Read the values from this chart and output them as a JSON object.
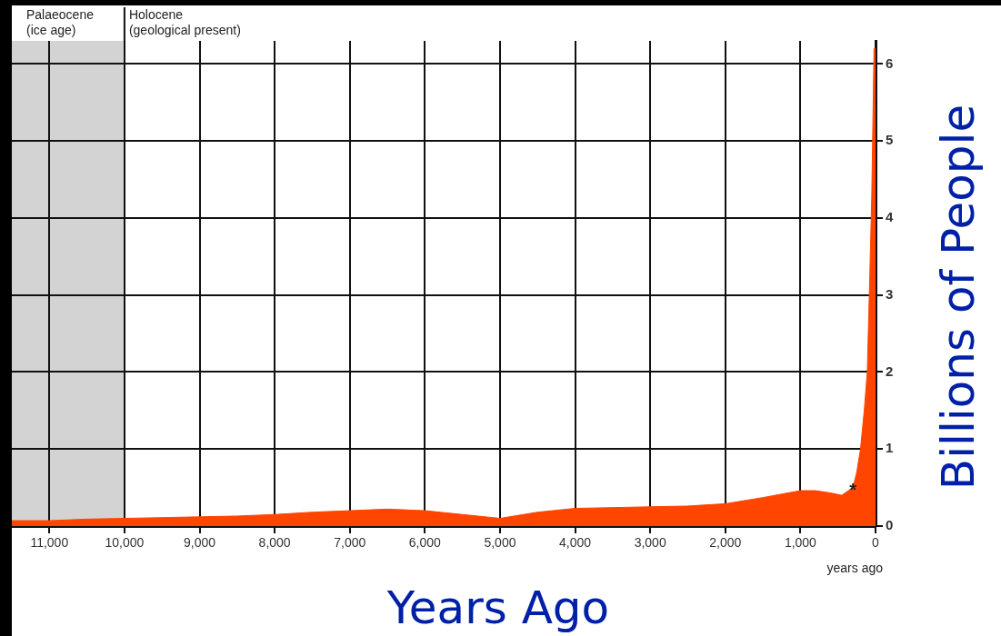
{
  "chart_data": {
    "type": "area",
    "xlabel": "Years Ago",
    "ylabel": "Billions of People",
    "x": [
      11500,
      11000,
      10500,
      10000,
      9500,
      9000,
      8500,
      8000,
      7500,
      7000,
      6500,
      6000,
      5500,
      5000,
      4500,
      4000,
      3500,
      3000,
      2500,
      2000,
      1500,
      1000,
      800,
      600,
      450,
      300,
      250,
      200,
      150,
      110,
      75,
      50,
      20,
      0
    ],
    "series": [
      {
        "color": "#ff4500",
        "values": [
          0.07,
          0.07,
          0.09,
          0.1,
          0.11,
          0.12,
          0.13,
          0.15,
          0.18,
          0.2,
          0.22,
          0.2,
          0.15,
          0.1,
          0.18,
          0.23,
          0.24,
          0.25,
          0.26,
          0.29,
          0.37,
          0.46,
          0.46,
          0.43,
          0.4,
          0.5,
          0.7,
          1.0,
          1.5,
          2.0,
          3.3,
          4.3,
          6.2,
          6.2
        ]
      }
    ],
    "xlim": [
      11500,
      0
    ],
    "ylim": [
      0,
      6.3
    ],
    "xticks": [
      {
        "value": 11000,
        "label": "11,000"
      },
      {
        "value": 10000,
        "label": "10,000"
      },
      {
        "value": 9000,
        "label": "9,000"
      },
      {
        "value": 8000,
        "label": "8,000"
      },
      {
        "value": 7000,
        "label": "7,000"
      },
      {
        "value": 6000,
        "label": "6,000"
      },
      {
        "value": 5000,
        "label": "5,000"
      },
      {
        "value": 4000,
        "label": "4,000"
      },
      {
        "value": 3000,
        "label": "3,000"
      },
      {
        "value": 2000,
        "label": "2,000"
      },
      {
        "value": 1000,
        "label": "1,000"
      },
      0
    ],
    "yticks": [
      0,
      1,
      2,
      3,
      4,
      5,
      6
    ],
    "grid": true,
    "legend": false,
    "bands": [
      {
        "axis": "x",
        "from": 11500,
        "to": 10000,
        "label": "Palaeocene\n(ice age)",
        "color": "#d3d3d3"
      }
    ],
    "annotations": [
      "Holocene\n(geological present)",
      "years ago",
      {
        "text": "*",
        "x": 300,
        "y": 0.5
      }
    ]
  }
}
